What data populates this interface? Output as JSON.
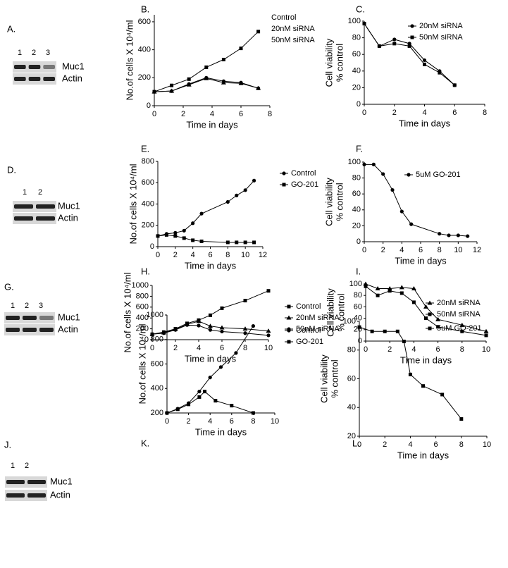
{
  "blots": [
    {
      "panel": "A.",
      "lanes": [
        "1",
        "2",
        "3"
      ],
      "bands": [
        "Muc1",
        "Actin"
      ]
    },
    {
      "panel": "D.",
      "lanes": [
        "1",
        "2"
      ],
      "bands": [
        "Muc1",
        "Actin"
      ]
    },
    {
      "panel": "G.",
      "lanes": [
        "1",
        "2",
        "3"
      ],
      "bands": [
        "Muc1",
        "Actin"
      ]
    },
    {
      "panel": "J.",
      "lanes": [
        "1",
        "2"
      ],
      "bands": [
        "Muc1",
        "Actin"
      ]
    }
  ],
  "chart_data": [
    {
      "type": "line",
      "panel_label": "B.",
      "ylabel": [
        "No.of cells X 10⁴/ml"
      ],
      "xlabel": "Time in days",
      "xlim": [
        0,
        8
      ],
      "xticks": [
        0,
        2,
        4,
        6,
        8
      ],
      "ylim": [
        0,
        650
      ],
      "yticks": [
        0,
        200,
        400,
        600
      ],
      "legend": "upper right",
      "series": [
        {
          "name": "Control",
          "color": "#000000",
          "marker": "square",
          "x": [
            0,
            1.2,
            2.4,
            3.6,
            4.8,
            6,
            7.2
          ],
          "values": [
            100,
            145,
            190,
            275,
            330,
            410,
            530
          ]
        },
        {
          "name": "20nM siRNA",
          "color": "#000000",
          "marker": "triangle",
          "x": [
            0,
            1.2,
            2.4,
            3.6,
            4.8,
            6,
            7.2
          ],
          "values": [
            100,
            105,
            150,
            195,
            165,
            160,
            125
          ]
        },
        {
          "name": "50nM siRNA",
          "color": "#000000",
          "marker": "circle",
          "x": [
            0,
            1.2,
            2.4,
            3.6,
            4.8,
            6,
            7.2
          ],
          "values": [
            100,
            105,
            155,
            200,
            175,
            165,
            125
          ]
        }
      ]
    },
    {
      "type": "line",
      "panel_label": "C.",
      "ylabel": [
        "Cell viability",
        "% control"
      ],
      "xlabel": "Time in days",
      "xlim": [
        0,
        8
      ],
      "xticks": [
        0,
        2,
        4,
        6,
        8
      ],
      "ylim": [
        0,
        100
      ],
      "yticks": [
        0,
        20,
        40,
        60,
        80,
        100
      ],
      "legend": "upper right",
      "series": [
        {
          "name": "20nM siRNA",
          "color": "#000000",
          "marker": "circle",
          "x": [
            0,
            1,
            2,
            3,
            4,
            5,
            6
          ],
          "values": [
            97,
            70,
            78,
            73,
            53,
            40,
            23
          ]
        },
        {
          "name": "50nM siRNA",
          "color": "#000000",
          "marker": "square",
          "x": [
            0,
            1,
            2,
            3,
            4,
            5,
            6
          ],
          "values": [
            97,
            70,
            73,
            70,
            48,
            38,
            23
          ]
        }
      ]
    },
    {
      "type": "line",
      "panel_label": "E.",
      "ylabel": [
        "No.of cells X 10⁴/ml"
      ],
      "xlabel": "Time in days",
      "xlim": [
        0,
        12
      ],
      "xticks": [
        0,
        2,
        4,
        6,
        8,
        10,
        12
      ],
      "ylim": [
        0,
        800
      ],
      "yticks": [
        0,
        200,
        400,
        600,
        800
      ],
      "legend": "upper right",
      "series": [
        {
          "name": "Control",
          "color": "#000000",
          "marker": "circle",
          "x": [
            0,
            1,
            2,
            3,
            4,
            5,
            8,
            9,
            10,
            11
          ],
          "values": [
            100,
            120,
            130,
            150,
            220,
            310,
            420,
            480,
            530,
            620
          ]
        },
        {
          "name": "GO-201",
          "color": "#000000",
          "marker": "square",
          "x": [
            0,
            1,
            2,
            3,
            4,
            5,
            8,
            9,
            10,
            11
          ],
          "values": [
            100,
            110,
            100,
            80,
            60,
            50,
            40,
            40,
            40,
            40
          ]
        }
      ]
    },
    {
      "type": "line",
      "panel_label": "F.",
      "ylabel": [
        "Cell viability",
        "% control"
      ],
      "xlabel": "Time in days",
      "xlim": [
        0,
        12
      ],
      "xticks": [
        0,
        2,
        4,
        6,
        8,
        10,
        12
      ],
      "ylim": [
        0,
        100
      ],
      "yticks": [
        0,
        20,
        40,
        60,
        80,
        100
      ],
      "legend": "upper right",
      "series": [
        {
          "name": "5uM GO-201",
          "color": "#000000",
          "marker": "circle",
          "x": [
            0,
            1,
            2,
            3,
            4,
            5,
            8,
            9,
            10,
            11
          ],
          "values": [
            97,
            97,
            85,
            65,
            38,
            22,
            10,
            8,
            8,
            7
          ]
        }
      ]
    },
    {
      "type": "line",
      "panel_label": "H.",
      "ylabel": [
        "No.of cells X 10⁴/ml"
      ],
      "xlabel": "Time in days",
      "xlim": [
        0,
        10
      ],
      "xticks": [
        0,
        2,
        4,
        6,
        8,
        10
      ],
      "ylim": [
        0,
        1000
      ],
      "yticks": [
        0,
        200,
        400,
        600,
        800,
        1000
      ],
      "legend": "upper right",
      "series": [
        {
          "name": "Control",
          "color": "#000000",
          "marker": "square",
          "x": [
            0,
            1,
            2,
            3,
            4,
            5,
            6,
            8,
            10
          ],
          "values": [
            100,
            140,
            200,
            300,
            360,
            450,
            580,
            720,
            900
          ]
        },
        {
          "name": "20nM siRNA",
          "color": "#000000",
          "marker": "triangle",
          "x": [
            0,
            1,
            2,
            3,
            4,
            5,
            6,
            8,
            10
          ],
          "values": [
            100,
            130,
            190,
            280,
            340,
            250,
            220,
            200,
            160
          ]
        },
        {
          "name": "50nM siRNA",
          "color": "#000000",
          "marker": "circle",
          "x": [
            0,
            1,
            2,
            3,
            4,
            5,
            6,
            8,
            10
          ],
          "values": [
            100,
            120,
            180,
            270,
            260,
            180,
            150,
            120,
            80
          ]
        }
      ]
    },
    {
      "type": "line",
      "panel_label": "I.",
      "ylabel": [
        "Cell viability",
        "% control"
      ],
      "xlabel": "Time in days",
      "xlim": [
        0,
        10
      ],
      "xticks": [
        0,
        2,
        4,
        6,
        8,
        10
      ],
      "ylim": [
        0,
        100
      ],
      "yticks": [
        0,
        20,
        40,
        60,
        80,
        100
      ],
      "legend": "upper right",
      "series": [
        {
          "name": "20nM siRNA",
          "color": "#000000",
          "marker": "triangle",
          "x": [
            0,
            1,
            2,
            3,
            4,
            5,
            6,
            8,
            10
          ],
          "values": [
            100,
            92,
            92,
            94,
            92,
            60,
            38,
            28,
            17
          ]
        },
        {
          "name": "50nM siRNA",
          "color": "#000000",
          "marker": "square",
          "x": [
            0,
            1,
            2,
            3,
            4,
            5,
            6,
            8,
            10
          ],
          "values": [
            96,
            80,
            88,
            84,
            68,
            40,
            25,
            17,
            10
          ]
        }
      ]
    },
    {
      "type": "line",
      "panel_label": "K.",
      "ylabel": [
        "No.of cells X 10⁴/ml"
      ],
      "xlabel": "Time in days",
      "xlim": [
        0,
        10
      ],
      "xticks": [
        0,
        2,
        4,
        6,
        8,
        10
      ],
      "ylim": [
        200,
        1000
      ],
      "yticks": [
        200,
        400,
        600,
        800,
        1000
      ],
      "legend": "upper right",
      "series": [
        {
          "name": "Control",
          "color": "#000000",
          "marker": "circle",
          "x": [
            0,
            1,
            2,
            3,
            4,
            5,
            6.4,
            8
          ],
          "values": [
            200,
            235,
            280,
            375,
            490,
            575,
            690,
            910
          ]
        },
        {
          "name": "GO-201",
          "color": "#000000",
          "marker": "square",
          "x": [
            0,
            1,
            2,
            3,
            3.5,
            4.5,
            6,
            8
          ],
          "values": [
            200,
            230,
            270,
            330,
            375,
            300,
            260,
            200
          ]
        }
      ]
    },
    {
      "type": "line",
      "panel_label": "L.",
      "ylabel": [
        "Cell viability",
        "% control"
      ],
      "xlabel": "Time in days",
      "xlim": [
        0,
        10
      ],
      "xticks": [
        0,
        2,
        4,
        6,
        8,
        10
      ],
      "ylim": [
        20,
        100
      ],
      "yticks": [
        20,
        40,
        60,
        80,
        100
      ],
      "legend": "upper right",
      "series": [
        {
          "name": "5uM GO-201",
          "color": "#000000",
          "marker": "square",
          "x": [
            0,
            1,
            2,
            3,
            3.5,
            4,
            5,
            6.5,
            8
          ],
          "values": [
            96,
            93,
            93,
            93,
            86,
            63,
            55,
            49,
            32
          ]
        }
      ]
    }
  ]
}
